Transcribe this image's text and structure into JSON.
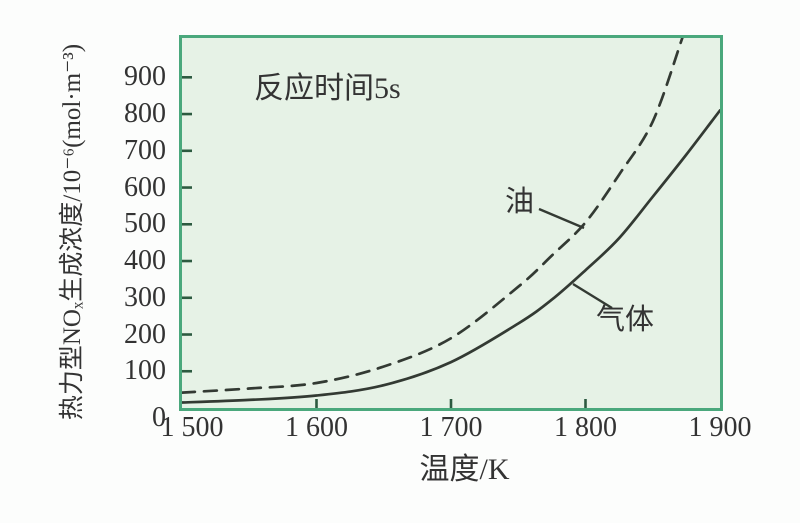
{
  "chart_data": {
    "type": "line",
    "annotation": "反应时间5s",
    "xlabel": "温度/K",
    "ylabel": "热力型NOₓ生成浓度/10⁻⁶(mol·m⁻³)",
    "xlim": [
      1500,
      1900
    ],
    "ylim": [
      0,
      1007
    ],
    "grid": false,
    "legend_position": "inline-curve-labels",
    "x_ticks": [
      1500,
      1600,
      1700,
      1800,
      1900
    ],
    "x_tick_labels": [
      "1 500",
      "1 600",
      "1 700",
      "1 800",
      "1 900"
    ],
    "y_ticks": [
      0,
      100,
      200,
      300,
      400,
      500,
      600,
      700,
      800,
      900
    ],
    "y_tick_labels": [
      "0",
      "100",
      "200",
      "300",
      "400",
      "500",
      "600",
      "700",
      "800",
      "900"
    ],
    "series": [
      {
        "id": "oil",
        "name": "油",
        "style": "dashed",
        "x": [
          1500,
          1550,
          1600,
          1650,
          1700,
          1750,
          1775,
          1800,
          1825,
          1850,
          1872
        ],
        "values": [
          42,
          53,
          68,
          113,
          190,
          330,
          415,
          505,
          635,
          780,
          1007
        ]
      },
      {
        "id": "gas",
        "name": "气体",
        "style": "solid",
        "x": [
          1500,
          1550,
          1600,
          1650,
          1700,
          1750,
          1775,
          1800,
          1825,
          1850,
          1875,
          1900
        ],
        "values": [
          15,
          22,
          34,
          62,
          125,
          230,
          295,
          375,
          462,
          575,
          690,
          810
        ]
      }
    ],
    "colors": {
      "page_bg": "#fcfdfc",
      "plot_bg": "#e6f2e6",
      "border": "#4aa87c",
      "curve": "#333a33",
      "tick": "#2c5a40",
      "text": "#333333"
    }
  }
}
